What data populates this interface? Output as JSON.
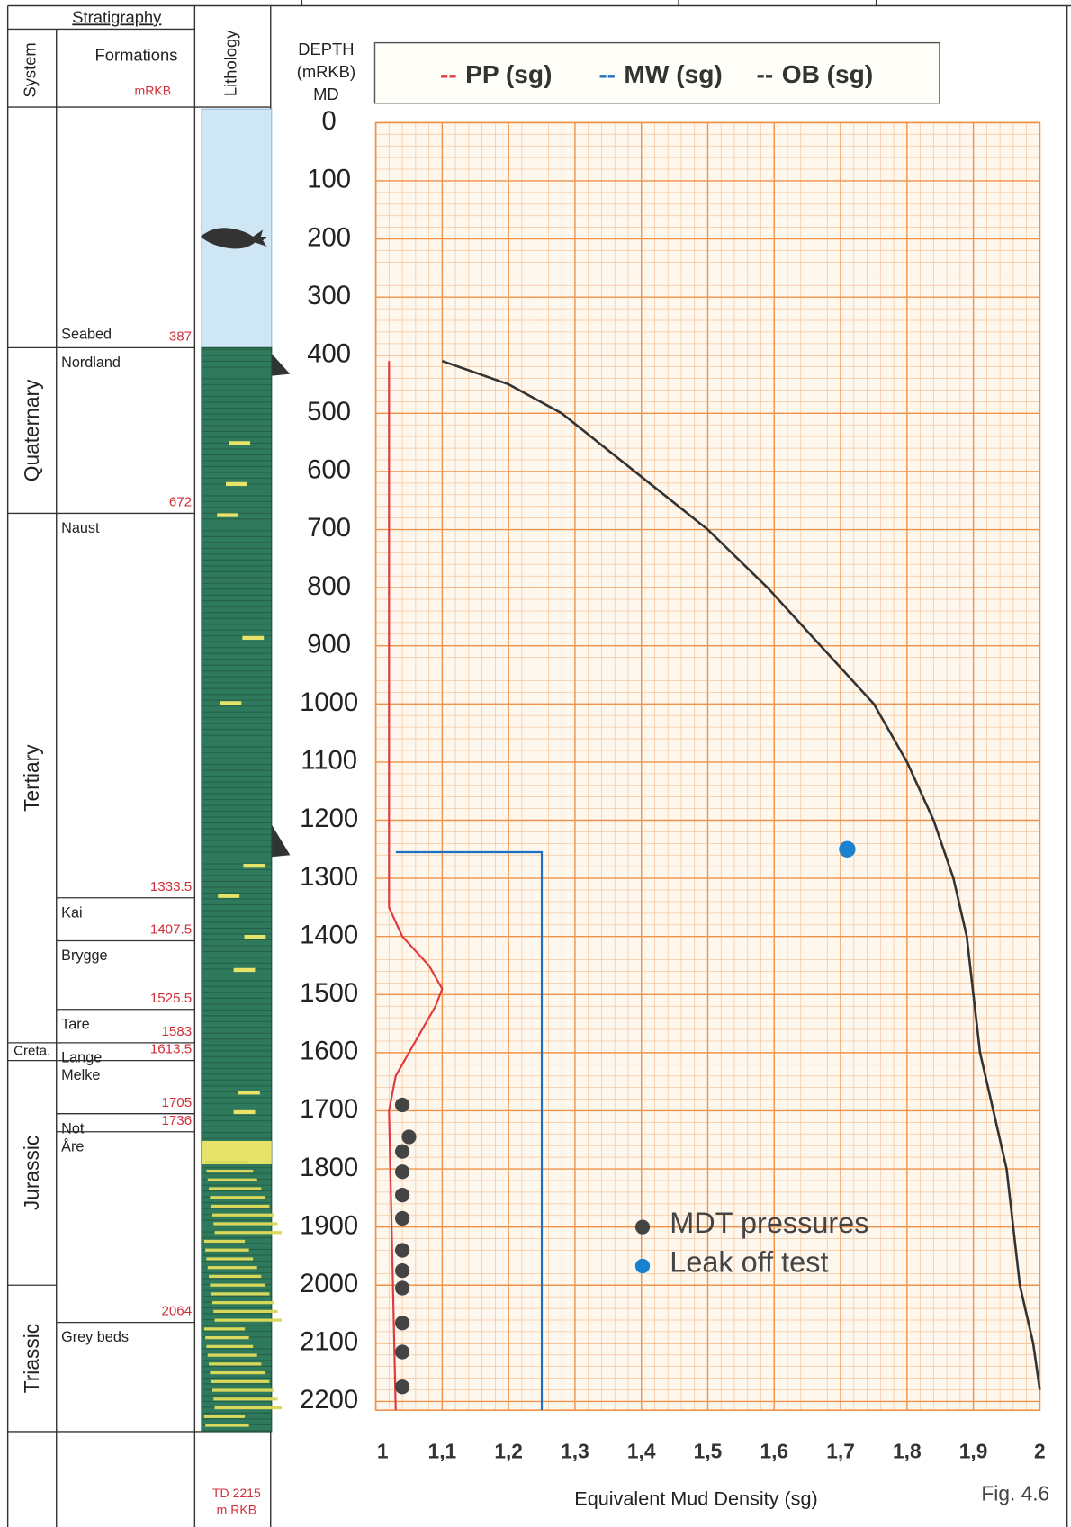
{
  "chart_data": {
    "type": "line",
    "y_title": [
      "DEPTH",
      "(mRKB)",
      "MD"
    ],
    "x_title": "Equivalent Mud Density (sg)",
    "figure_label": "Fig. 4.6",
    "xlim": [
      1,
      2
    ],
    "xticks": [
      1,
      {
        "value": 1.1,
        "label": "1,1"
      },
      {
        "value": 1.2,
        "label": "1,2"
      },
      {
        "value": 1.3,
        "label": "1,3"
      },
      {
        "value": 1.4,
        "label": "1,4"
      },
      {
        "value": 1.5,
        "label": "1,5"
      },
      {
        "value": 1.6,
        "label": "1,6"
      },
      {
        "value": 1.7,
        "label": "1,7"
      },
      {
        "value": 1.8,
        "label": "1,8"
      },
      {
        "value": 1.9,
        "label": "1,9"
      },
      2
    ],
    "ylim": [
      0,
      2215
    ],
    "yticks": [
      0,
      100,
      200,
      300,
      400,
      500,
      600,
      700,
      800,
      900,
      1000,
      1100,
      1200,
      1300,
      1400,
      1500,
      1600,
      1700,
      1800,
      1900,
      2000,
      2100,
      2200
    ],
    "y_reversed": true,
    "grid": true,
    "series": [
      {
        "name": "PP (sg)",
        "color": "#e0393e",
        "mode": "line",
        "depth": [
          410,
          1350,
          1400,
          1450,
          1490,
          1520,
          1580,
          1640,
          1700,
          2215
        ],
        "values": [
          1.02,
          1.02,
          1.04,
          1.08,
          1.1,
          1.09,
          1.06,
          1.03,
          1.02,
          1.03
        ]
      },
      {
        "name": "MW (sg)",
        "color": "#1f6fc0",
        "mode": "line",
        "depth": [
          1255,
          1255,
          2215
        ],
        "values": [
          1.03,
          1.25,
          1.25
        ]
      },
      {
        "name": "OB (sg)",
        "color": "#333333",
        "mode": "line",
        "depth": [
          410,
          450,
          500,
          600,
          700,
          800,
          900,
          1000,
          1100,
          1200,
          1300,
          1400,
          1500,
          1600,
          1700,
          1800,
          1900,
          2000,
          2100,
          2180
        ],
        "values": [
          1.1,
          1.2,
          1.28,
          1.39,
          1.5,
          1.59,
          1.67,
          1.75,
          1.8,
          1.84,
          1.87,
          1.89,
          1.9,
          1.91,
          1.93,
          1.95,
          1.96,
          1.97,
          1.99,
          2.0
        ]
      },
      {
        "name": "MDT pressures",
        "color": "#444444",
        "mode": "marker",
        "depth": [
          1690,
          1745,
          1770,
          1805,
          1845,
          1885,
          1940,
          1975,
          2005,
          2065,
          2115,
          2175
        ],
        "values": [
          1.04,
          1.05,
          1.04,
          1.04,
          1.04,
          1.04,
          1.04,
          1.04,
          1.04,
          1.04,
          1.04,
          1.04
        ]
      },
      {
        "name": "Leak off test",
        "color": "#1a80d0",
        "mode": "marker",
        "depth": [
          1250
        ],
        "values": [
          1.71
        ]
      }
    ]
  },
  "stratigraphy": {
    "title": "Stratigraphy",
    "system": "System",
    "formations": "Formations",
    "unit": "mRKB",
    "lithology": "Lithology",
    "td_label": [
      "TD 2215",
      "m RKB"
    ],
    "formation_list": [
      {
        "name": "Seabed",
        "base": 387
      },
      {
        "name": "Nordland",
        "base": 672
      },
      {
        "name": "Naust",
        "base": 1333.5
      },
      {
        "name": "Kai",
        "base": 1407.5
      },
      {
        "name": "Brygge",
        "base": 1525.5
      },
      {
        "name": "Tare",
        "base": 1583
      },
      {
        "name": "Lange",
        "base": 1613.5
      },
      {
        "name": "Melke",
        "base": 1705
      },
      {
        "name": "Not",
        "base": 1736
      },
      {
        "name": "Åre",
        "base": 2064
      },
      {
        "name": "Grey beds",
        "base": null
      }
    ],
    "systems": [
      {
        "name": "Quaternary",
        "top": 387,
        "base": 672
      },
      {
        "name": "Tertiary",
        "top": 672,
        "base": 1583
      },
      {
        "name": "Creta.",
        "top": 1583,
        "base": 1613.5
      },
      {
        "name": "Jurassic",
        "top": 1613.5,
        "base": 2000
      },
      {
        "name": "Triassic",
        "top": 2000,
        "base": null
      }
    ]
  }
}
